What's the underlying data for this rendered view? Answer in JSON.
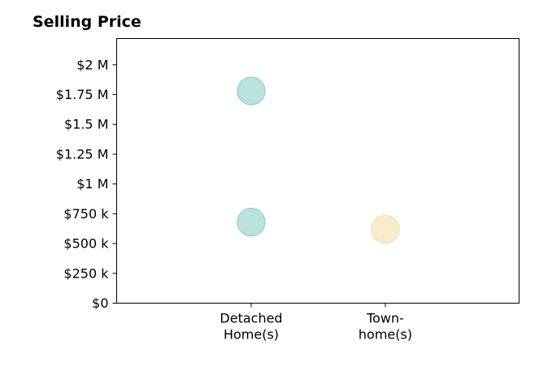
{
  "chart_data": {
    "type": "scatter",
    "title": "Selling Price",
    "xlabel": "",
    "ylabel": "",
    "categories": [
      [
        "Detached",
        "Home(s)"
      ],
      [
        "Town-",
        "home(s)"
      ]
    ],
    "y_ticks": [
      "$0",
      "$250 k",
      "$500 k",
      "$750 k",
      "$1 M",
      "$1.25 M",
      "$1.5 M",
      "$1.75 M",
      "$2 M"
    ],
    "y_tick_values": [
      0,
      250000,
      500000,
      750000,
      1000000,
      1250000,
      1500000,
      1750000,
      2000000
    ],
    "ylim": [
      0,
      2220000
    ],
    "grid": false,
    "points": [
      {
        "category_index": 0,
        "value": 1780000,
        "color": "#8fcfc8"
      },
      {
        "category_index": 0,
        "value": 680000,
        "color": "#8fcfc8"
      },
      {
        "category_index": 1,
        "value": 620000,
        "color": "#f1dfaa"
      }
    ]
  }
}
